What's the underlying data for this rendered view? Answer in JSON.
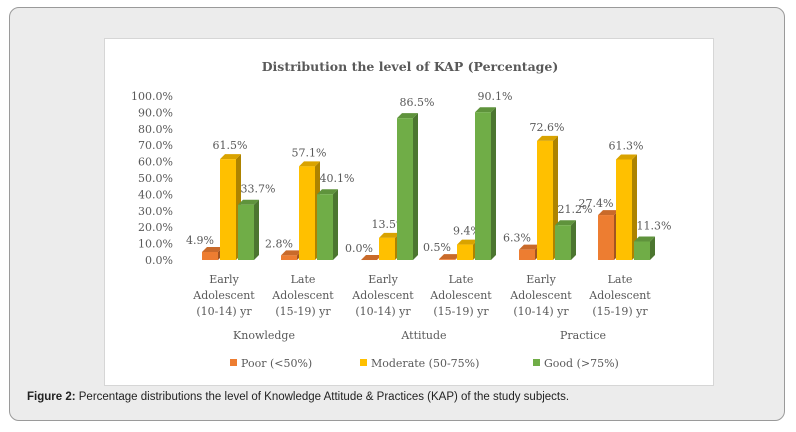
{
  "caption": {
    "label": "Figure 2:",
    "text": " Percentage distributions the level of Knowledge Attitude & Practices (KAP) of the study subjects."
  },
  "colors": {
    "poor": "#ED7D31",
    "moderate": "#FFC000",
    "good": "#70AD47",
    "text": "#595959"
  },
  "chart_data": {
    "type": "bar",
    "title": "Distribution the level of KAP (Percentage)",
    "xlabel": "",
    "ylabel": "",
    "ylim": [
      0,
      100
    ],
    "yticks": [
      0,
      10,
      20,
      30,
      40,
      50,
      60,
      70,
      80,
      90,
      100
    ],
    "ytick_labels": [
      "0.0%",
      "10.0%",
      "20.0%",
      "30.0%",
      "40.0%",
      "50.0%",
      "60.0%",
      "70.0%",
      "80.0%",
      "90.0%",
      "100.0%"
    ],
    "grid": false,
    "legend_position": "bottom",
    "groups": [
      "Knowledge",
      "Attitude",
      "Practice"
    ],
    "categories": [
      [
        "Early",
        "Adolescent",
        "(10-14) yr"
      ],
      [
        "Late",
        "Adolescent",
        "(15-19) yr"
      ],
      [
        "Early",
        "Adolescent",
        "(10-14) yr"
      ],
      [
        "Late",
        "Adolescent",
        "(15-19) yr"
      ],
      [
        "Early",
        "Adolescent",
        "(10-14) yr"
      ],
      [
        "Late",
        "Adolescent",
        "(15-19) yr"
      ]
    ],
    "series": [
      {
        "name": "Poor  (<50%)",
        "color": "#ED7D31",
        "values": [
          4.9,
          2.8,
          0.0,
          0.5,
          6.3,
          27.4
        ],
        "labels": [
          "4.9%",
          "2.8%",
          "0.0%",
          "0.5%",
          "6.3%",
          "27.4%"
        ]
      },
      {
        "name": "Moderate  (50-75%)",
        "color": "#FFC000",
        "values": [
          61.5,
          57.1,
          13.5,
          9.4,
          72.6,
          61.3
        ],
        "labels": [
          "61.5%",
          "57.1%",
          "13.5%",
          "9.4%",
          "72.6%",
          "61.3%"
        ]
      },
      {
        "name": "Good (>75%)",
        "color": "#70AD47",
        "values": [
          33.7,
          40.1,
          86.5,
          90.1,
          21.2,
          11.3
        ],
        "labels": [
          "33.7%",
          "40.1%",
          "86.5%",
          "90.1%",
          "21.2%",
          "11.3%"
        ]
      }
    ]
  }
}
